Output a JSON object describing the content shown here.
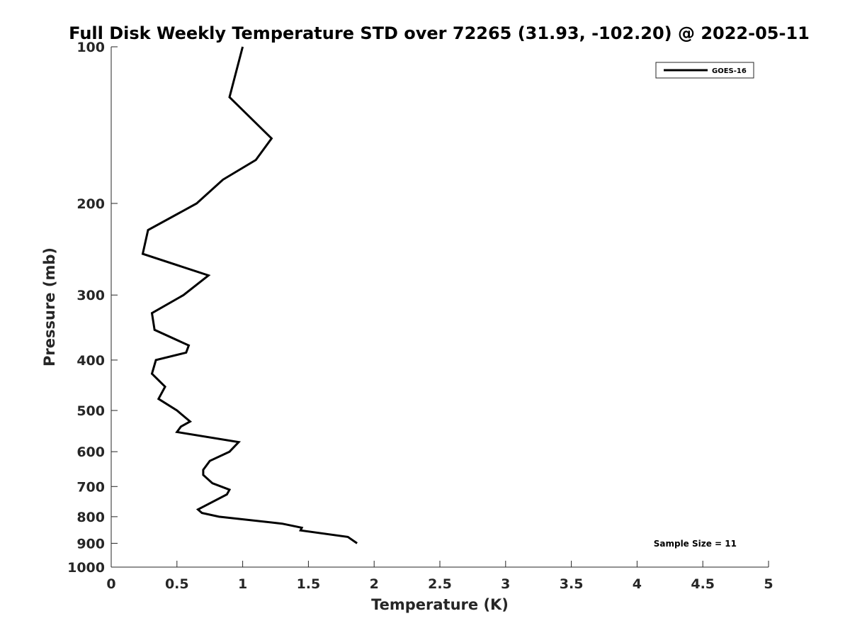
{
  "chart_data": {
    "type": "line",
    "title": "Full Disk Weekly Temperature STD over 72265 (31.93, -102.20) @ 2022-05-11",
    "xlabel": "Temperature (K)",
    "ylabel": "Pressure (mb)",
    "xlim": [
      0,
      5
    ],
    "ylim": [
      1000,
      100
    ],
    "yscale": "log",
    "y_reversed": true,
    "xticks": [
      "0",
      "0.5",
      "1",
      "1.5",
      "2",
      "2.5",
      "3",
      "3.5",
      "4",
      "4.5",
      "5"
    ],
    "yticks": [
      "100",
      "200",
      "300",
      "400",
      "500",
      "600",
      "700",
      "800",
      "900",
      "1000"
    ],
    "grid": false,
    "legend_position": "top-right",
    "annotation": "Sample Size = 11",
    "series": [
      {
        "name": "GOES-16",
        "color": "#000000",
        "points": [
          {
            "x": 1.0,
            "y": 100
          },
          {
            "x": 0.9,
            "y": 125
          },
          {
            "x": 1.22,
            "y": 150
          },
          {
            "x": 1.1,
            "y": 165
          },
          {
            "x": 0.85,
            "y": 180
          },
          {
            "x": 0.65,
            "y": 200
          },
          {
            "x": 0.28,
            "y": 225
          },
          {
            "x": 0.24,
            "y": 250
          },
          {
            "x": 0.74,
            "y": 275
          },
          {
            "x": 0.55,
            "y": 300
          },
          {
            "x": 0.31,
            "y": 325
          },
          {
            "x": 0.33,
            "y": 350
          },
          {
            "x": 0.59,
            "y": 375
          },
          {
            "x": 0.57,
            "y": 387
          },
          {
            "x": 0.34,
            "y": 400
          },
          {
            "x": 0.31,
            "y": 425
          },
          {
            "x": 0.41,
            "y": 450
          },
          {
            "x": 0.36,
            "y": 475
          },
          {
            "x": 0.5,
            "y": 500
          },
          {
            "x": 0.6,
            "y": 525
          },
          {
            "x": 0.53,
            "y": 537
          },
          {
            "x": 0.5,
            "y": 550
          },
          {
            "x": 0.97,
            "y": 575
          },
          {
            "x": 0.9,
            "y": 600
          },
          {
            "x": 0.75,
            "y": 625
          },
          {
            "x": 0.7,
            "y": 650
          },
          {
            "x": 0.7,
            "y": 665
          },
          {
            "x": 0.77,
            "y": 690
          },
          {
            "x": 0.9,
            "y": 710
          },
          {
            "x": 0.88,
            "y": 725
          },
          {
            "x": 0.66,
            "y": 775
          },
          {
            "x": 0.69,
            "y": 787
          },
          {
            "x": 0.82,
            "y": 800
          },
          {
            "x": 1.3,
            "y": 825
          },
          {
            "x": 1.45,
            "y": 840
          },
          {
            "x": 1.44,
            "y": 850
          },
          {
            "x": 1.8,
            "y": 875
          },
          {
            "x": 1.87,
            "y": 900
          }
        ]
      }
    ]
  }
}
